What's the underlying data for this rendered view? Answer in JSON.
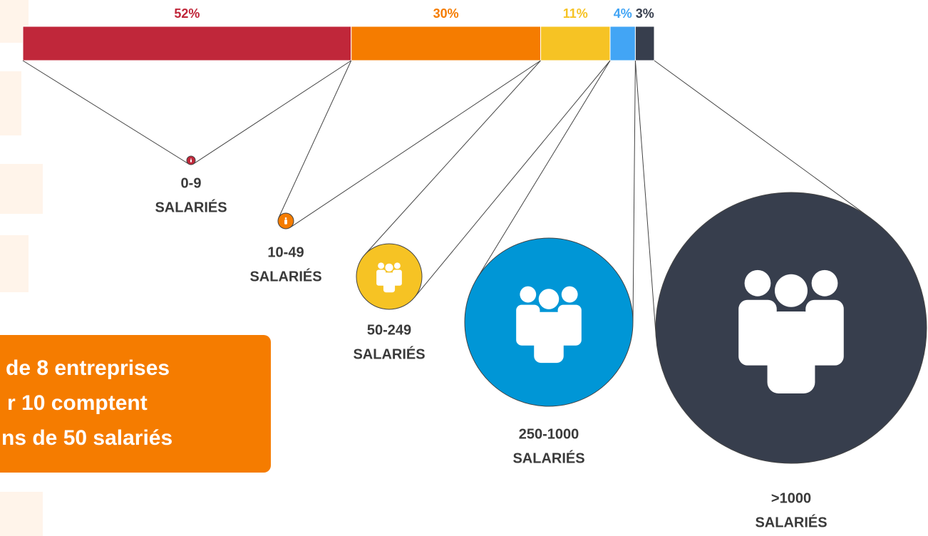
{
  "chart_data": {
    "type": "stacked-bar",
    "categories": [
      "0-9",
      "10-49",
      "50-249",
      "250-1000",
      ">1000"
    ],
    "category_suffix": "SALARIÉS",
    "values": [
      52,
      30,
      11,
      4,
      3
    ],
    "value_labels": [
      "52%",
      "30%",
      "11%",
      "4%",
      "3%"
    ],
    "colors": [
      "#c0273a",
      "#f57c00",
      "#f6c324",
      "#42a5f5",
      "#373e4d"
    ],
    "circle_colors": [
      "#c0273a",
      "#f57c00",
      "#f6c324",
      "#0096d6",
      "#373e4d"
    ],
    "callout": [
      "de 8 entreprises",
      "r 10 comptent",
      "ns de 50 salariés"
    ]
  }
}
